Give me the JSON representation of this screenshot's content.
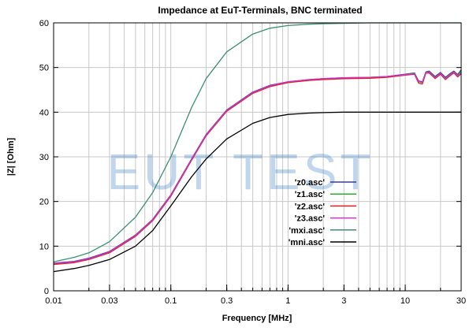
{
  "chart_data": {
    "type": "line",
    "title": "Impedance at EuT-Terminals, BNC terminated",
    "xlabel": "Frequency [MHz]",
    "ylabel": "|Z| [Ohm]",
    "xscale": "log",
    "xlim": [
      0.01,
      30
    ],
    "ylim": [
      0,
      60
    ],
    "grid": true,
    "legend_position": "center-right",
    "watermark": "EUT TEST",
    "x_ticks": [
      {
        "value": 0.01,
        "label": "0.01"
      },
      {
        "value": 0.03,
        "label": "0.03"
      },
      {
        "value": 0.1,
        "label": "0.1"
      },
      {
        "value": 0.3,
        "label": "0.3"
      },
      {
        "value": 1,
        "label": "1"
      },
      {
        "value": 3,
        "label": "3"
      },
      {
        "value": 10,
        "label": "10"
      },
      {
        "value": 30,
        "label": "30"
      }
    ],
    "y_ticks": [
      0,
      10,
      20,
      30,
      40,
      50,
      60
    ],
    "series": [
      {
        "name": "'z0.asc'",
        "color": "#3b3b9a",
        "x": [
          0.01,
          0.015,
          0.02,
          0.03,
          0.05,
          0.07,
          0.1,
          0.15,
          0.2,
          0.3,
          0.5,
          0.7,
          1,
          1.5,
          2,
          3,
          5,
          7,
          10,
          12,
          13,
          14,
          15,
          16,
          18,
          20,
          22,
          24,
          26,
          28,
          30
        ],
        "y": [
          6.2,
          6.6,
          7.3,
          8.8,
          12.5,
          16.0,
          21.5,
          29.5,
          35.0,
          40.5,
          44.5,
          46.0,
          46.8,
          47.3,
          47.5,
          47.7,
          47.8,
          48.0,
          48.5,
          48.8,
          47.0,
          46.8,
          49.0,
          49.2,
          48.0,
          48.9,
          47.8,
          48.6,
          49.2,
          48.4,
          49.5
        ]
      },
      {
        "name": "'z1.asc'",
        "color": "#2fae2f",
        "x": [
          0.01,
          0.015,
          0.02,
          0.03,
          0.05,
          0.07,
          0.1,
          0.15,
          0.2,
          0.3,
          0.5,
          0.7,
          1,
          1.5,
          2,
          3,
          5,
          7,
          10,
          12,
          13,
          14,
          15,
          16,
          18,
          20,
          22,
          24,
          26,
          28,
          30
        ],
        "y": [
          6.0,
          6.4,
          7.1,
          8.6,
          12.3,
          15.8,
          21.3,
          29.3,
          34.8,
          40.3,
          44.3,
          45.8,
          46.7,
          47.2,
          47.4,
          47.6,
          47.7,
          47.9,
          48.4,
          48.7,
          46.8,
          46.6,
          48.9,
          49.0,
          47.8,
          48.7,
          47.6,
          48.4,
          49.0,
          48.2,
          49.2
        ]
      },
      {
        "name": "'z2.asc'",
        "color": "#e02020",
        "x": [
          0.01,
          0.015,
          0.02,
          0.03,
          0.05,
          0.07,
          0.1,
          0.15,
          0.2,
          0.3,
          0.5,
          0.7,
          1,
          1.5,
          2,
          3,
          5,
          7,
          10,
          12,
          13,
          14,
          15,
          16,
          18,
          20,
          22,
          24,
          26,
          28,
          30
        ],
        "y": [
          5.9,
          6.3,
          7.0,
          8.5,
          12.2,
          15.7,
          21.2,
          29.2,
          34.7,
          40.2,
          44.2,
          45.7,
          46.6,
          47.1,
          47.3,
          47.5,
          47.6,
          47.8,
          48.3,
          48.5,
          46.5,
          46.3,
          48.7,
          48.8,
          47.5,
          48.5,
          47.3,
          48.1,
          48.8,
          47.9,
          48.6
        ]
      },
      {
        "name": "'z3.asc'",
        "color": "#cc33cc",
        "x": [
          0.01,
          0.015,
          0.02,
          0.03,
          0.05,
          0.07,
          0.1,
          0.15,
          0.2,
          0.3,
          0.5,
          0.7,
          1,
          1.5,
          2,
          3,
          5,
          7,
          10,
          12,
          13,
          14,
          15,
          16,
          18,
          20,
          22,
          24,
          26,
          28,
          30
        ],
        "y": [
          6.1,
          6.5,
          7.2,
          8.7,
          12.4,
          15.9,
          21.4,
          29.4,
          34.9,
          40.4,
          44.4,
          45.9,
          46.8,
          47.3,
          47.5,
          47.7,
          47.8,
          48.0,
          48.4,
          48.6,
          46.9,
          46.7,
          48.8,
          49.0,
          47.7,
          48.7,
          47.5,
          48.3,
          49.0,
          48.1,
          48.9
        ]
      },
      {
        "name": "'mxi.asc'",
        "color": "#3d8f74",
        "x": [
          0.01,
          0.015,
          0.02,
          0.03,
          0.05,
          0.07,
          0.1,
          0.15,
          0.2,
          0.3,
          0.5,
          0.7,
          1,
          1.5,
          2,
          3,
          5,
          10,
          20,
          30
        ],
        "y": [
          6.5,
          7.5,
          8.5,
          11.0,
          16.5,
          22.0,
          30.0,
          41.0,
          47.5,
          53.5,
          57.5,
          58.8,
          59.4,
          59.7,
          59.8,
          59.9,
          60.0,
          60.0,
          60.0,
          60.0
        ]
      },
      {
        "name": "'mni.asc'",
        "color": "#000000",
        "x": [
          0.01,
          0.015,
          0.02,
          0.03,
          0.05,
          0.07,
          0.1,
          0.15,
          0.2,
          0.3,
          0.5,
          0.7,
          1,
          1.5,
          2,
          3,
          5,
          10,
          20,
          30
        ],
        "y": [
          4.3,
          5.0,
          5.7,
          7.0,
          10.0,
          13.5,
          19.0,
          25.5,
          29.5,
          34.0,
          37.5,
          38.8,
          39.5,
          39.8,
          39.9,
          40.0,
          40.0,
          40.0,
          40.0,
          40.0
        ]
      }
    ]
  }
}
